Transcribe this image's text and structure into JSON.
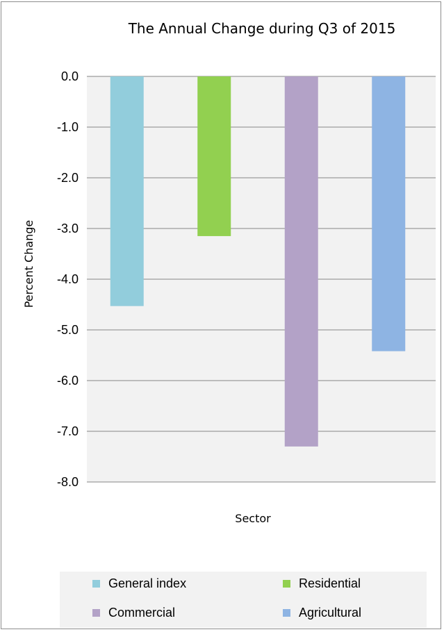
{
  "chart_data": {
    "type": "bar",
    "title": "The Annual Change during Q3 of 2015",
    "xlabel": "Sector",
    "ylabel": "Percent Change",
    "ylim": [
      -8.0,
      0.0
    ],
    "yticks": [
      "0.0",
      "-1.0",
      "-2.0",
      "-3.0",
      "-4.0",
      "-5.0",
      "-6.0",
      "-7.0",
      "-8.0"
    ],
    "grid": true,
    "legend_position": "bottom",
    "series": [
      {
        "name": "General index",
        "value": -4.53,
        "color": "#92cddc"
      },
      {
        "name": "Residential",
        "value": -3.15,
        "color": "#92d050"
      },
      {
        "name": "Commercial",
        "value": -7.3,
        "color": "#b3a2c7"
      },
      {
        "name": "Agricultural",
        "value": -5.42,
        "color": "#8eb4e3"
      }
    ]
  },
  "colors": {
    "plot_background": "#f2f2f2",
    "gridline": "#868686",
    "legend_background": "#f2f2f2"
  }
}
